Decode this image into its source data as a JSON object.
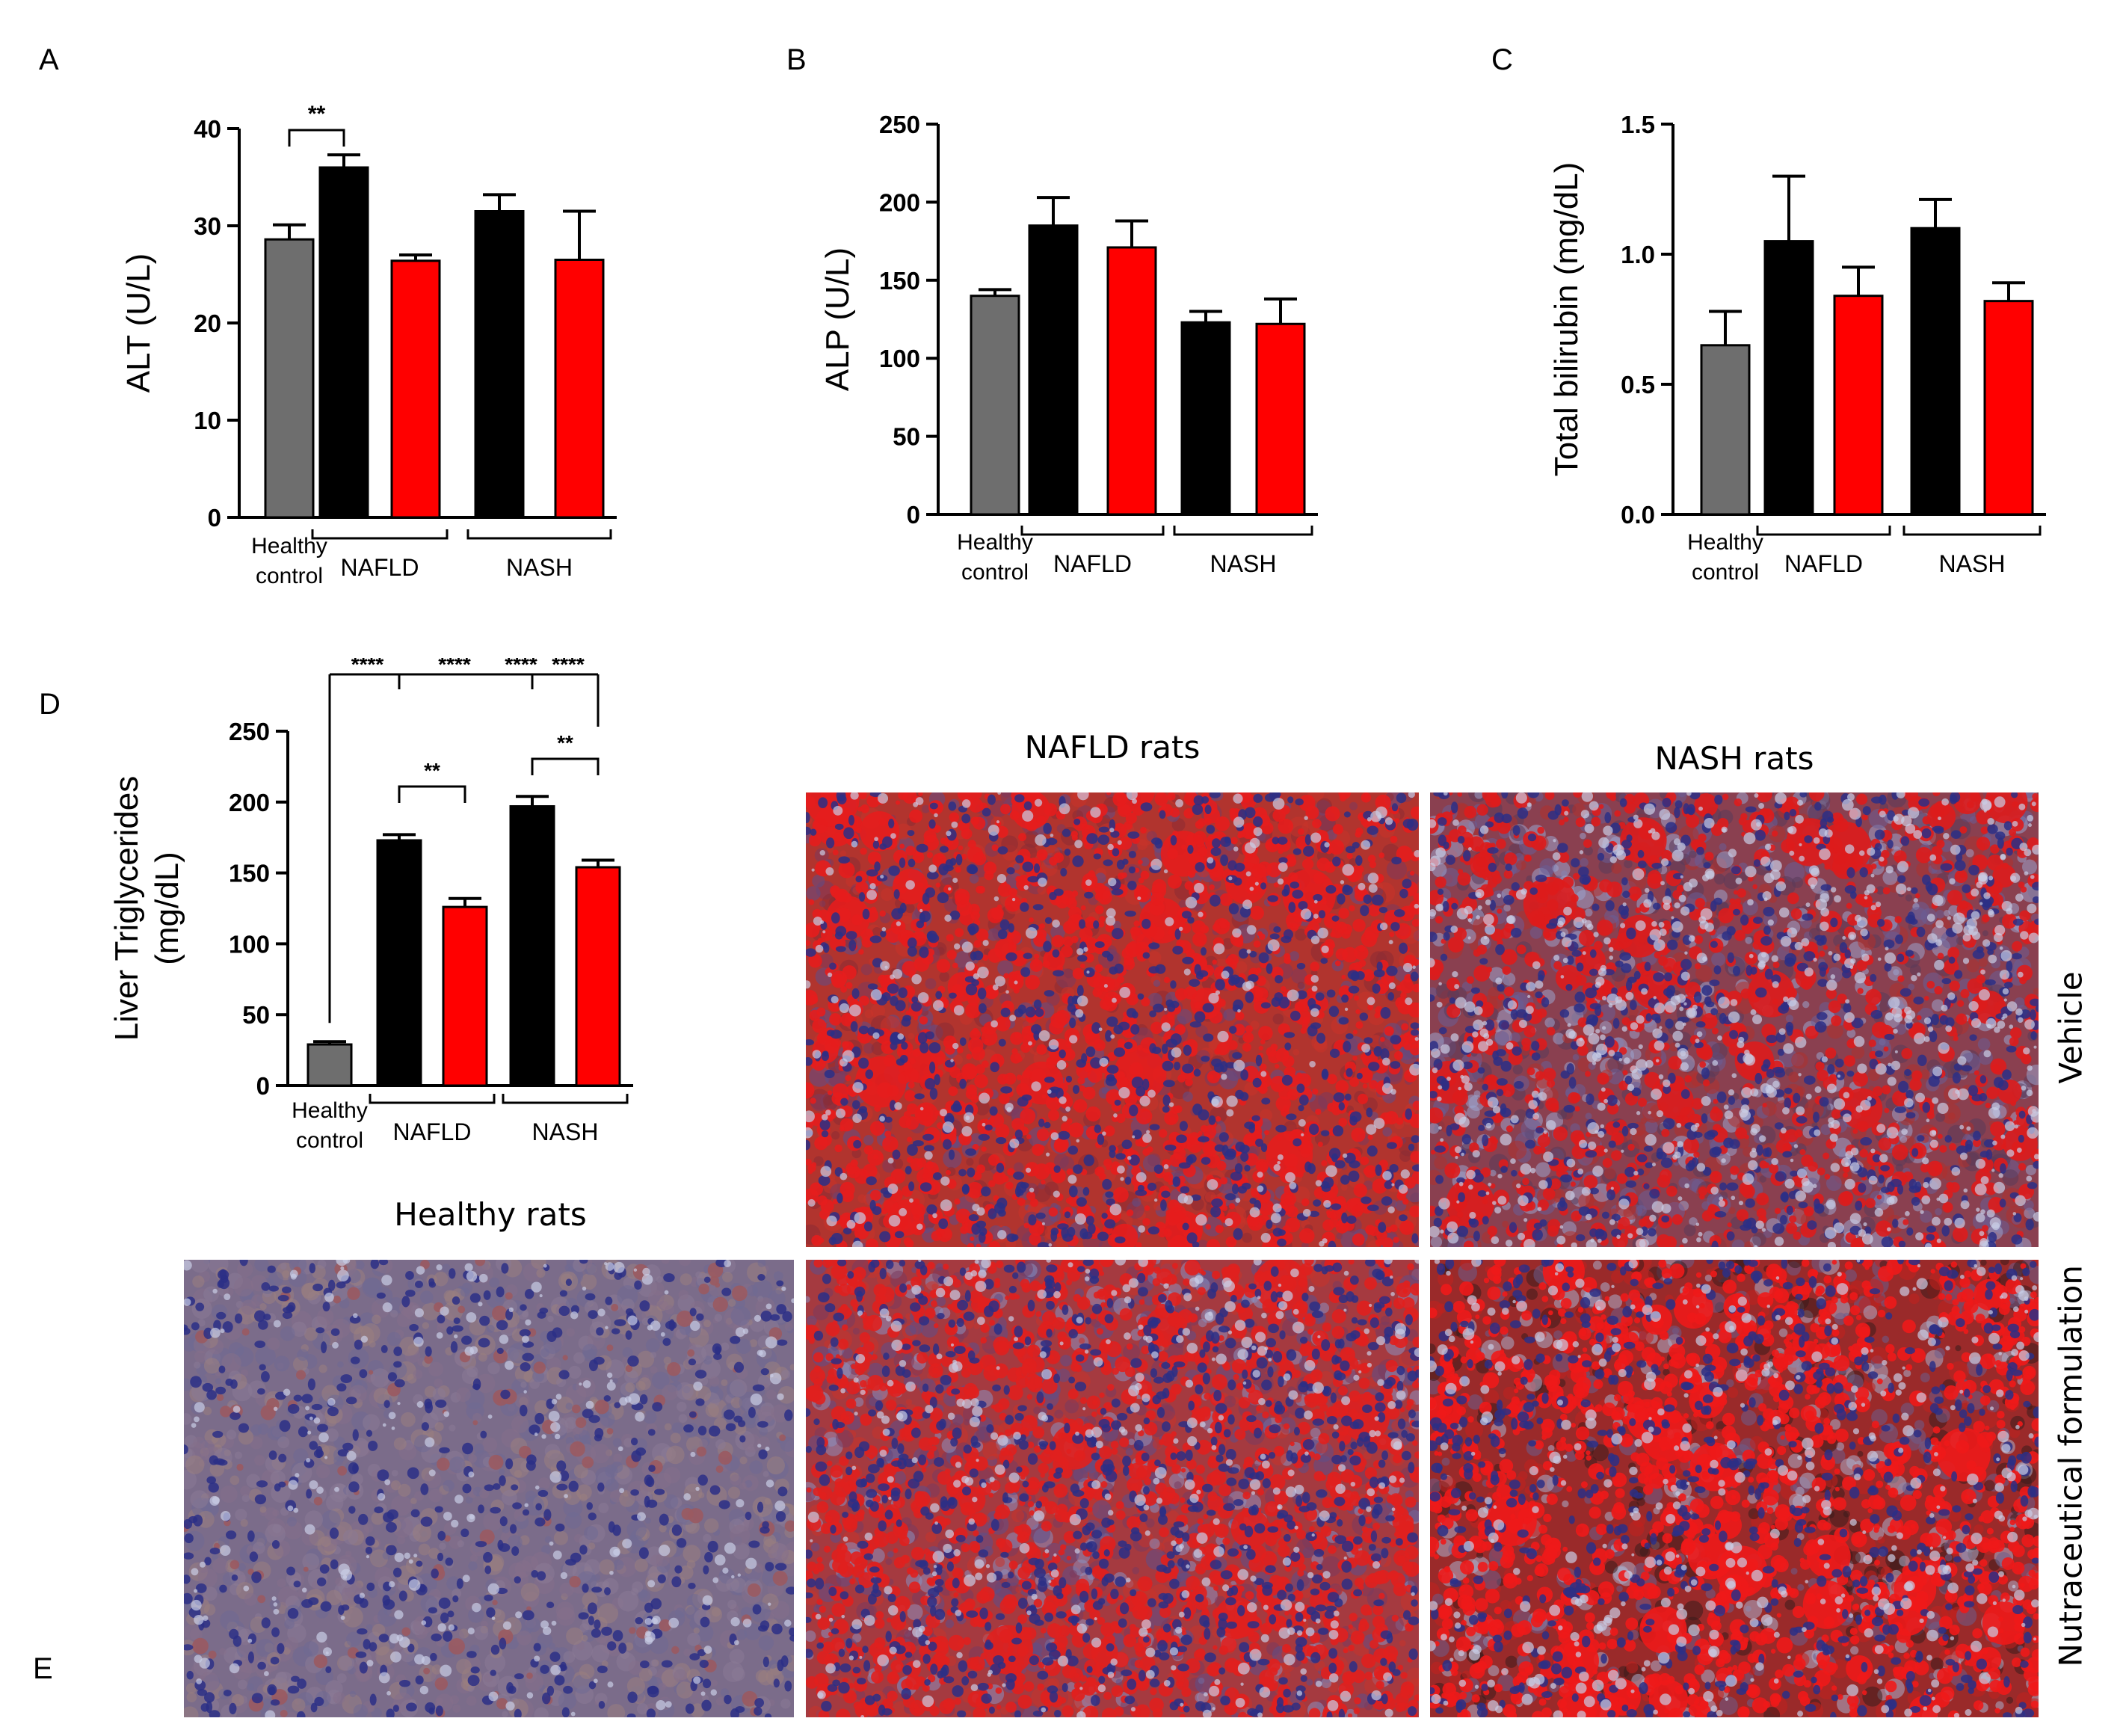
{
  "panel_letters": {
    "a": "A",
    "b": "B",
    "c": "C",
    "d": "D",
    "e": "E"
  },
  "colors": {
    "control": "#6e6e6e",
    "vehicle": "#000000",
    "nutraceutical": "#ff0000"
  },
  "chart_data": [
    {
      "id": "A",
      "type": "bar",
      "ylabel": "ALT (U/L)",
      "ylim": [
        0,
        40
      ],
      "yticks": [
        0,
        10,
        20,
        30,
        40
      ],
      "group_labels": [
        "Healthy\ncontrol",
        "NAFLD",
        "NASH"
      ],
      "bars": [
        {
          "group": "Healthy control",
          "color": "control",
          "value": 28.6,
          "error": 1.5
        },
        {
          "group": "NAFLD",
          "color": "vehicle",
          "value": 36.0,
          "error": 1.3
        },
        {
          "group": "NAFLD",
          "color": "nutraceutical",
          "value": 26.4,
          "error": 0.6
        },
        {
          "group": "NASH",
          "color": "vehicle",
          "value": 31.5,
          "error": 1.7
        },
        {
          "group": "NASH",
          "color": "nutraceutical",
          "value": 26.5,
          "error": 5.0
        }
      ],
      "significance": [
        {
          "from": 0,
          "to": 1,
          "label": "**"
        }
      ]
    },
    {
      "id": "B",
      "type": "bar",
      "ylabel": "ALP (U/L)",
      "ylim": [
        0,
        250
      ],
      "yticks": [
        0,
        50,
        100,
        150,
        200,
        250
      ],
      "group_labels": [
        "Healthy\ncontrol",
        "NAFLD",
        "NASH"
      ],
      "bars": [
        {
          "group": "Healthy control",
          "color": "control",
          "value": 140,
          "error": 4
        },
        {
          "group": "NAFLD",
          "color": "vehicle",
          "value": 185,
          "error": 18
        },
        {
          "group": "NAFLD",
          "color": "nutraceutical",
          "value": 171,
          "error": 17
        },
        {
          "group": "NASH",
          "color": "vehicle",
          "value": 123,
          "error": 7
        },
        {
          "group": "NASH",
          "color": "nutraceutical",
          "value": 122,
          "error": 16
        }
      ],
      "significance": []
    },
    {
      "id": "C",
      "type": "bar",
      "ylabel": "Total bilirubin (mg/dL)",
      "ylim": [
        0,
        1.5
      ],
      "yticks": [
        0.0,
        0.5,
        1.0,
        1.5
      ],
      "tick_decimals": 1,
      "group_labels": [
        "Healthy\ncontrol",
        "NAFLD",
        "NASH"
      ],
      "bars": [
        {
          "group": "Healthy control",
          "color": "control",
          "value": 0.65,
          "error": 0.13
        },
        {
          "group": "NAFLD",
          "color": "vehicle",
          "value": 1.05,
          "error": 0.25
        },
        {
          "group": "NAFLD",
          "color": "nutraceutical",
          "value": 0.84,
          "error": 0.11
        },
        {
          "group": "NASH",
          "color": "vehicle",
          "value": 1.1,
          "error": 0.11
        },
        {
          "group": "NASH",
          "color": "nutraceutical",
          "value": 0.82,
          "error": 0.07
        }
      ],
      "significance": []
    },
    {
      "id": "D",
      "type": "bar",
      "ylabel": "Liver Triglycerides\n(mg/dL)",
      "ylim": [
        0,
        250
      ],
      "yticks": [
        0,
        50,
        100,
        150,
        200,
        250
      ],
      "group_labels": [
        "Healthy\ncontrol",
        "NAFLD",
        "NASH"
      ],
      "bars": [
        {
          "group": "Healthy control",
          "color": "control",
          "value": 29,
          "error": 2
        },
        {
          "group": "NAFLD",
          "color": "vehicle",
          "value": 173,
          "error": 4
        },
        {
          "group": "NAFLD",
          "color": "nutraceutical",
          "value": 126,
          "error": 6
        },
        {
          "group": "NASH",
          "color": "vehicle",
          "value": 197,
          "error": 7
        },
        {
          "group": "NASH",
          "color": "nutraceutical",
          "value": 154,
          "error": 5
        }
      ],
      "significance": [
        {
          "from": 0,
          "to": 4,
          "label": "****",
          "level": "top"
        },
        {
          "from": 1,
          "to": 4,
          "label": "****",
          "level": "top"
        },
        {
          "from": 3,
          "to": 4,
          "label": "****",
          "level": "top"
        },
        {
          "from": 1,
          "to": 2,
          "label": "**",
          "level": "mid"
        },
        {
          "from": 3,
          "to": 4,
          "label": "**",
          "level": "mid"
        }
      ],
      "top_stars": [
        "****",
        "****",
        "****",
        "****"
      ]
    }
  ],
  "histology": {
    "column_titles": {
      "healthy": "Healthy rats",
      "nafld": "NAFLD rats",
      "nash": "NASH rats"
    },
    "row_labels": {
      "vehicle": "Vehicle",
      "nutraceutical": "Nutraceutical formulation"
    }
  }
}
